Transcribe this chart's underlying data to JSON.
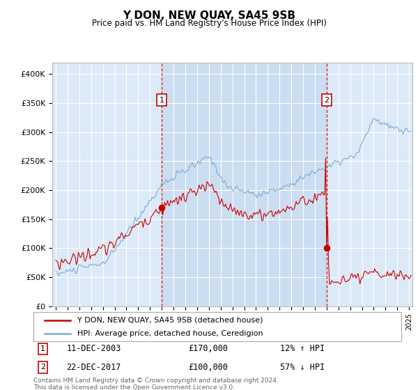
{
  "title": "Y DON, NEW QUAY, SA45 9SB",
  "subtitle": "Price paid vs. HM Land Registry's House Price Index (HPI)",
  "background_color": "#dce9f7",
  "plot_bg_color": "#dce9f7",
  "red_line_color": "#cc0000",
  "blue_line_color": "#7aadd4",
  "grid_color": "#ffffff",
  "ylim": [
    0,
    420000
  ],
  "yticks": [
    0,
    50000,
    100000,
    150000,
    200000,
    250000,
    300000,
    350000,
    400000
  ],
  "ytick_labels": [
    "£0",
    "£50K",
    "£100K",
    "£150K",
    "£200K",
    "£250K",
    "£300K",
    "£350K",
    "£400K"
  ],
  "sale1": {
    "date": "11-DEC-2003",
    "price": 170000,
    "label": "12% ↑ HPI",
    "x_year": 2004.0
  },
  "sale2": {
    "date": "22-DEC-2017",
    "price": 100000,
    "label": "57% ↓ HPI",
    "x_year": 2018.0
  },
  "legend_label1": "Y DON, NEW QUAY, SA45 9SB (detached house)",
  "legend_label2": "HPI: Average price, detached house, Ceredigion",
  "footer": "Contains HM Land Registry data © Crown copyright and database right 2024.\nThis data is licensed under the Open Government Licence v3.0.",
  "annotation1_num": "1",
  "annotation2_num": "2",
  "xlim": [
    1994.7,
    2025.3
  ],
  "xtick_start": 1995,
  "xtick_end": 2025
}
